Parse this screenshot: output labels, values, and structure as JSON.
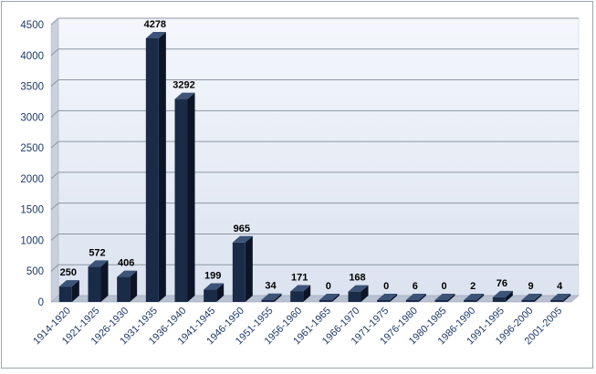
{
  "chart_data": {
    "type": "bar",
    "categories": [
      "1914-1920",
      "1921-1925",
      "1926-1930",
      "1931-1935",
      "1936-1940",
      "1941-1945",
      "1946-1950",
      "1951-1955",
      "1956-1960",
      "1961-1965",
      "1966-1970",
      "1971-1975",
      "1976-1980",
      "1980-1985",
      "1986-1990",
      "1991-1995",
      "1996-2000",
      "2001-2005"
    ],
    "values": [
      250,
      572,
      406,
      4278,
      3292,
      199,
      965,
      34,
      171,
      0,
      168,
      0,
      6,
      0,
      2,
      76,
      9,
      4
    ],
    "y_ticks": [
      "0",
      "500",
      "1000",
      "1500",
      "2000",
      "2500",
      "3000",
      "3500",
      "4000",
      "4500"
    ],
    "ylim": [
      0,
      4500
    ],
    "title": "",
    "xlabel": "",
    "ylabel": "",
    "grid": true,
    "legend": "none",
    "colors": {
      "bar_front": "#1a2b48",
      "bar_side": "#0c1526",
      "bar_top": "#3d5478",
      "wall": "#dce3f0",
      "floor": "#b8c2d2",
      "gridline": "#8c96a4",
      "axis_text": "#1f3a6b",
      "label_text": "#000000"
    }
  }
}
